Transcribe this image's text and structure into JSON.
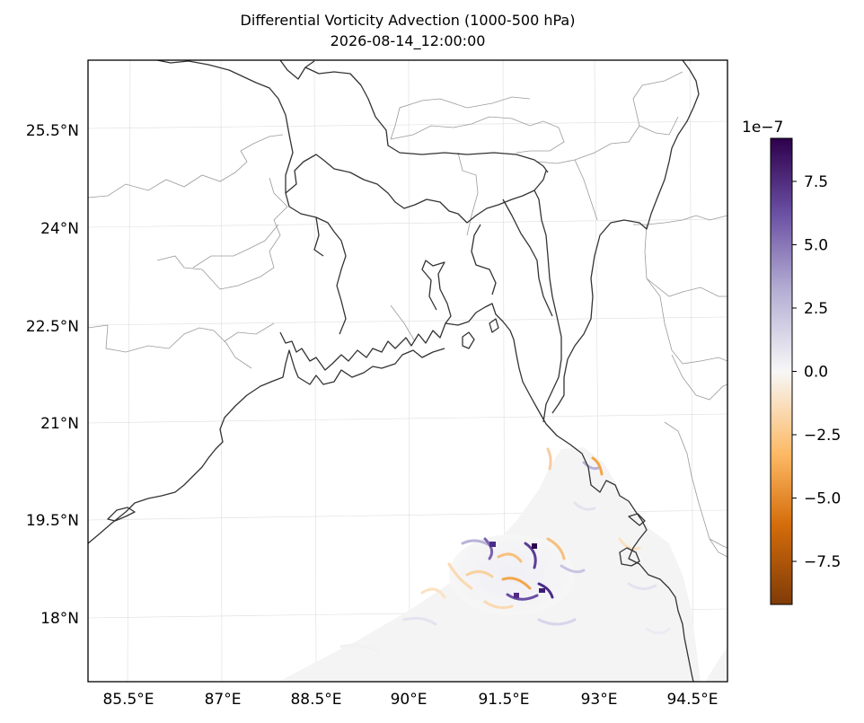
{
  "title": {
    "line1": "Differential Vorticity Advection (1000-500 hPa)",
    "line2": "2026-08-14_12:00:00"
  },
  "map": {
    "lat_labels": [
      "25.5°N",
      "24°N",
      "22.5°N",
      "21°N",
      "19.5°N",
      "18°N"
    ],
    "lon_labels": [
      "85.5°E",
      "87°E",
      "88.5°E",
      "90°E",
      "91.5°E",
      "93°E",
      "94.5°E"
    ],
    "extent": {
      "lon": [
        84.85,
        94.85
      ],
      "lat": [
        17.2,
        26.6
      ]
    }
  },
  "colorbar": {
    "exponent": "1e−7",
    "ticks": [
      "7.5",
      "5.0",
      "2.5",
      "0.0",
      "−2.5",
      "−5.0",
      "−7.5"
    ],
    "tick_values": [
      7.5,
      5.0,
      2.5,
      0.0,
      -2.5,
      -5.0,
      -7.5
    ],
    "range": [
      -9.2,
      9.2
    ],
    "colormap": "PuOr",
    "colors": [
      "#7f3b08",
      "#e08214",
      "#fdb863",
      "#f7f7f7",
      "#b2abd2",
      "#542788",
      "#2d004b"
    ]
  }
}
